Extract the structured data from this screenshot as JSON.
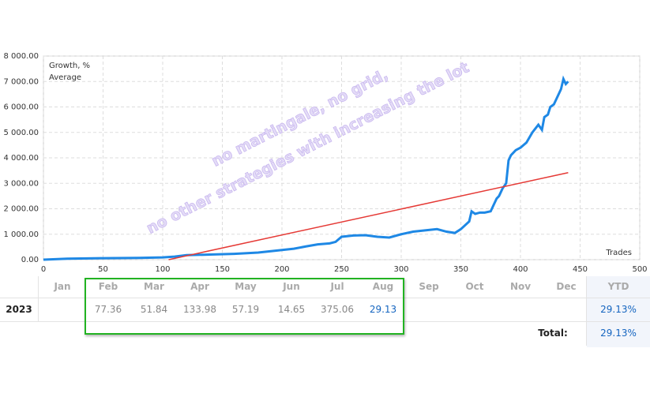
{
  "chart_data": {
    "type": "line",
    "xlabel": "Trades",
    "series": [
      {
        "name": "Growth, %",
        "color": "#1e88e5",
        "x": [
          0,
          20,
          50,
          80,
          100,
          110,
          120,
          140,
          160,
          180,
          200,
          210,
          220,
          230,
          240,
          245,
          250,
          260,
          270,
          280,
          290,
          300,
          310,
          320,
          330,
          338,
          345,
          350,
          357,
          359,
          362,
          366,
          370,
          375,
          380,
          382,
          385,
          388,
          390,
          392,
          396,
          400,
          405,
          410,
          415,
          418,
          420,
          423,
          425,
          428,
          432,
          434,
          436,
          438,
          440
        ],
        "values": [
          0,
          40,
          60,
          70,
          90,
          120,
          180,
          200,
          230,
          280,
          380,
          430,
          520,
          600,
          640,
          700,
          900,
          950,
          960,
          900,
          870,
          1000,
          1100,
          1150,
          1200,
          1100,
          1050,
          1200,
          1500,
          1900,
          1800,
          1850,
          1850,
          1900,
          2400,
          2500,
          2800,
          3000,
          3900,
          4100,
          4300,
          4400,
          4600,
          5000,
          5300,
          5100,
          5600,
          5700,
          6000,
          6100,
          6500,
          6700,
          7100,
          6900,
          7000
        ]
      },
      {
        "name": "Average",
        "color": "#e53935",
        "x": [
          105,
          440
        ],
        "values": [
          0,
          3420
        ]
      }
    ],
    "xlim": [
      0,
      500
    ],
    "xticks": [
      0,
      50,
      100,
      150,
      200,
      250,
      300,
      350,
      400,
      450,
      500
    ],
    "ylim": [
      0,
      8000
    ],
    "yticks": [
      {
        "value": 0,
        "label": "0.00"
      },
      {
        "value": 1000,
        "label": "1 000.00"
      },
      {
        "value": 2000,
        "label": "2 000.00"
      },
      {
        "value": 3000,
        "label": "3 000.00"
      },
      {
        "value": 4000,
        "label": "4 000.00"
      },
      {
        "value": 5000,
        "label": "5 000.00"
      },
      {
        "value": 6000,
        "label": "6 000.00"
      },
      {
        "value": 7000,
        "label": "7 000.00"
      },
      {
        "value": 8000,
        "label": "8 000.00"
      }
    ],
    "grid": true,
    "legend": "top-left",
    "annotations": [
      "no martingale, no grid,",
      "no other strategies with increasing the lot"
    ]
  },
  "table": {
    "months": [
      "Jan",
      "Feb",
      "Mar",
      "Apr",
      "May",
      "Jun",
      "Jul",
      "Aug",
      "Sep",
      "Oct",
      "Nov",
      "Dec"
    ],
    "ytd_header": "YTD",
    "rows": [
      {
        "year": "2023",
        "values": [
          null,
          77.36,
          51.84,
          133.98,
          57.19,
          14.65,
          375.06,
          29.13,
          null,
          null,
          null,
          null
        ],
        "ytd": "29.13%"
      }
    ],
    "total_label": "Total:",
    "total": "29.13%"
  }
}
